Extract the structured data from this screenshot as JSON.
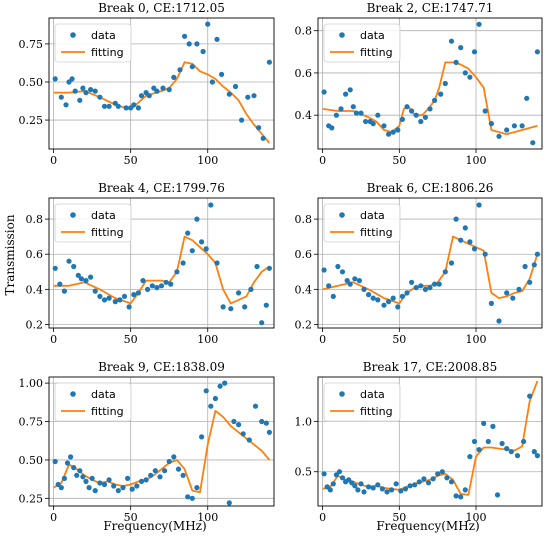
{
  "figure": {
    "ylabel": "Transmission",
    "xlabel": "Frequency(MHz)",
    "legend": {
      "data_label": "data",
      "fit_label": "fitting"
    },
    "colors": {
      "data": "#1f77b4",
      "fitting": "#ff7f0e",
      "grid": "#b0b0b0"
    }
  },
  "chart_data": [
    {
      "type": "scatter",
      "title": "Break 0, CE:1712.05",
      "xlim": [
        -3,
        143
      ],
      "ylim": [
        0.06,
        0.92
      ],
      "xticks": [
        0,
        50,
        100
      ],
      "yticks": [
        0.25,
        0.5,
        0.75
      ],
      "ytick_labels": [
        "0.25",
        "0.50",
        "0.75"
      ],
      "xlabel": "",
      "legend": "top-left",
      "series": [
        {
          "name": "data",
          "kind": "points",
          "x": [
            1,
            5,
            8,
            10,
            12,
            14,
            17,
            19,
            21,
            24,
            27,
            30,
            33,
            36,
            40,
            42,
            47,
            50,
            52,
            55,
            57,
            60,
            62,
            65,
            67,
            71,
            75,
            78,
            82,
            85,
            88,
            90,
            93,
            97,
            100,
            103,
            106,
            109,
            114,
            118,
            122,
            126,
            130,
            133,
            136,
            140
          ],
          "y": [
            0.52,
            0.4,
            0.35,
            0.5,
            0.52,
            0.44,
            0.38,
            0.46,
            0.43,
            0.45,
            0.44,
            0.4,
            0.34,
            0.34,
            0.36,
            0.34,
            0.33,
            0.33,
            0.35,
            0.33,
            0.41,
            0.43,
            0.41,
            0.46,
            0.44,
            0.46,
            0.45,
            0.53,
            0.58,
            0.8,
            0.75,
            0.6,
            0.75,
            0.7,
            0.88,
            0.5,
            0.78,
            0.55,
            0.42,
            0.47,
            0.25,
            0.4,
            0.41,
            0.2,
            0.13,
            0.63
          ]
        },
        {
          "name": "fitting",
          "kind": "line",
          "x": [
            0,
            10,
            20,
            30,
            40,
            50,
            60,
            70,
            75,
            80,
            85,
            90,
            95,
            100,
            105,
            110,
            115,
            120,
            125,
            130,
            135,
            140
          ],
          "y": [
            0.43,
            0.43,
            0.44,
            0.4,
            0.35,
            0.32,
            0.41,
            0.44,
            0.46,
            0.52,
            0.63,
            0.62,
            0.57,
            0.55,
            0.52,
            0.47,
            0.43,
            0.38,
            0.29,
            0.22,
            0.16,
            0.1
          ]
        }
      ]
    },
    {
      "type": "scatter",
      "title": "Break 2, CE:1747.71",
      "xlim": [
        -3,
        143
      ],
      "ylim": [
        0.24,
        0.86
      ],
      "xticks": [
        0,
        50,
        100
      ],
      "yticks": [
        0.4,
        0.6,
        0.8
      ],
      "ytick_labels": [
        "0.4",
        "0.6",
        "0.8"
      ],
      "xlabel": "",
      "legend": "top-left",
      "series": [
        {
          "name": "data",
          "kind": "points",
          "x": [
            1,
            4,
            6,
            9,
            12,
            15,
            18,
            20,
            22,
            25,
            28,
            31,
            33,
            36,
            40,
            43,
            46,
            49,
            52,
            55,
            58,
            61,
            64,
            67,
            70,
            73,
            77,
            80,
            84,
            87,
            90,
            93,
            96,
            99,
            102,
            106,
            110,
            115,
            120,
            125,
            130,
            133,
            137,
            140
          ],
          "y": [
            0.51,
            0.35,
            0.34,
            0.4,
            0.43,
            0.5,
            0.52,
            0.44,
            0.41,
            0.41,
            0.37,
            0.37,
            0.36,
            0.4,
            0.35,
            0.31,
            0.32,
            0.33,
            0.38,
            0.44,
            0.42,
            0.4,
            0.37,
            0.39,
            0.43,
            0.47,
            0.5,
            0.55,
            0.75,
            0.65,
            0.72,
            0.6,
            0.58,
            0.7,
            0.83,
            0.42,
            0.36,
            0.3,
            0.33,
            0.35,
            0.35,
            0.48,
            0.27,
            0.7
          ]
        },
        {
          "name": "fitting",
          "kind": "line",
          "x": [
            0,
            10,
            20,
            30,
            35,
            40,
            45,
            50,
            53,
            56,
            60,
            65,
            70,
            73,
            76,
            80,
            85,
            90,
            95,
            100,
            105,
            110,
            115,
            120,
            125,
            130,
            135,
            140
          ],
          "y": [
            0.43,
            0.42,
            0.42,
            0.39,
            0.37,
            0.33,
            0.32,
            0.35,
            0.43,
            0.44,
            0.4,
            0.4,
            0.44,
            0.47,
            0.53,
            0.65,
            0.65,
            0.64,
            0.62,
            0.58,
            0.53,
            0.33,
            0.32,
            0.31,
            0.32,
            0.33,
            0.34,
            0.35
          ]
        }
      ]
    },
    {
      "type": "scatter",
      "title": "Break 4, CE:1799.76",
      "xlim": [
        -3,
        143
      ],
      "ylim": [
        0.18,
        0.92
      ],
      "xticks": [
        0,
        50,
        100
      ],
      "yticks": [
        0.2,
        0.4,
        0.6,
        0.8
      ],
      "ytick_labels": [
        "0.2",
        "0.4",
        "0.6",
        "0.8"
      ],
      "xlabel": "",
      "legend": "top-left",
      "series": [
        {
          "name": "data",
          "kind": "points",
          "x": [
            1,
            4,
            7,
            10,
            13,
            16,
            18,
            21,
            24,
            27,
            30,
            33,
            36,
            40,
            43,
            46,
            49,
            52,
            55,
            58,
            61,
            64,
            67,
            70,
            73,
            76,
            80,
            84,
            87,
            90,
            93,
            96,
            99,
            102,
            106,
            110,
            115,
            120,
            124,
            128,
            132,
            135,
            138,
            140
          ],
          "y": [
            0.52,
            0.43,
            0.39,
            0.56,
            0.53,
            0.48,
            0.46,
            0.45,
            0.47,
            0.39,
            0.36,
            0.34,
            0.35,
            0.33,
            0.34,
            0.36,
            0.3,
            0.37,
            0.38,
            0.45,
            0.4,
            0.42,
            0.41,
            0.42,
            0.44,
            0.43,
            0.5,
            0.55,
            0.72,
            0.62,
            0.8,
            0.67,
            0.63,
            0.88,
            0.55,
            0.3,
            0.29,
            0.38,
            0.3,
            0.4,
            0.53,
            0.21,
            0.31,
            0.52
          ]
        },
        {
          "name": "fitting",
          "kind": "line",
          "x": [
            0,
            10,
            20,
            30,
            40,
            50,
            55,
            60,
            70,
            75,
            80,
            85,
            90,
            95,
            100,
            105,
            110,
            115,
            120,
            125,
            130,
            135,
            140
          ],
          "y": [
            0.42,
            0.42,
            0.44,
            0.4,
            0.35,
            0.32,
            0.38,
            0.45,
            0.45,
            0.44,
            0.5,
            0.7,
            0.68,
            0.64,
            0.6,
            0.55,
            0.4,
            0.32,
            0.34,
            0.36,
            0.44,
            0.5,
            0.53
          ]
        }
      ]
    },
    {
      "type": "scatter",
      "title": "Break 6, CE:1806.26",
      "xlim": [
        -3,
        143
      ],
      "ylim": [
        0.18,
        0.92
      ],
      "xticks": [
        0,
        50,
        100
      ],
      "yticks": [
        0.2,
        0.4,
        0.6,
        0.8
      ],
      "ytick_labels": [
        "0.2",
        "0.4",
        "0.6",
        "0.8"
      ],
      "xlabel": "",
      "legend": "top-left",
      "series": [
        {
          "name": "data",
          "kind": "points",
          "x": [
            1,
            4,
            7,
            10,
            13,
            16,
            18,
            21,
            24,
            27,
            30,
            33,
            36,
            40,
            43,
            46,
            49,
            52,
            55,
            58,
            61,
            64,
            67,
            70,
            73,
            76,
            80,
            84,
            87,
            90,
            93,
            96,
            99,
            102,
            106,
            110,
            115,
            120,
            124,
            128,
            132,
            135,
            138,
            140
          ],
          "y": [
            0.51,
            0.42,
            0.36,
            0.53,
            0.5,
            0.45,
            0.43,
            0.46,
            0.45,
            0.4,
            0.37,
            0.35,
            0.34,
            0.31,
            0.33,
            0.35,
            0.3,
            0.36,
            0.38,
            0.44,
            0.41,
            0.42,
            0.4,
            0.41,
            0.43,
            0.43,
            0.5,
            0.55,
            0.8,
            0.68,
            0.75,
            0.67,
            0.63,
            0.88,
            0.6,
            0.32,
            0.22,
            0.38,
            0.35,
            0.4,
            0.53,
            0.44,
            0.54,
            0.6
          ]
        },
        {
          "name": "fitting",
          "kind": "line",
          "x": [
            0,
            10,
            20,
            30,
            40,
            50,
            55,
            60,
            65,
            70,
            75,
            80,
            85,
            90,
            95,
            100,
            105,
            110,
            115,
            120,
            125,
            130,
            135,
            140
          ],
          "y": [
            0.4,
            0.42,
            0.44,
            0.4,
            0.35,
            0.32,
            0.38,
            0.41,
            0.42,
            0.42,
            0.44,
            0.5,
            0.7,
            0.68,
            0.66,
            0.64,
            0.62,
            0.38,
            0.35,
            0.36,
            0.38,
            0.39,
            0.46,
            0.6
          ]
        }
      ]
    },
    {
      "type": "scatter",
      "title": "Break 9, CE:1838.09",
      "xlim": [
        -3,
        143
      ],
      "ylim": [
        0.2,
        1.04
      ],
      "xticks": [
        0,
        50,
        100
      ],
      "yticks": [
        0.25,
        0.5,
        0.75,
        1.0
      ],
      "ytick_labels": [
        "0.25",
        "0.50",
        "0.75",
        "1.00"
      ],
      "xlabel": "Frequency(MHz)",
      "legend": "top-left",
      "series": [
        {
          "name": "data",
          "kind": "points",
          "x": [
            1,
            3,
            5,
            7,
            9,
            11,
            13,
            15,
            17,
            19,
            21,
            23,
            25,
            27,
            30,
            33,
            36,
            39,
            42,
            45,
            48,
            51,
            54,
            57,
            60,
            63,
            66,
            69,
            72,
            75,
            78,
            81,
            84,
            87,
            90,
            93,
            96,
            99,
            102,
            105,
            108,
            111,
            114,
            117,
            120,
            123,
            127,
            131,
            135,
            138,
            140
          ],
          "y": [
            0.49,
            0.34,
            0.32,
            0.38,
            0.48,
            0.52,
            0.45,
            0.4,
            0.43,
            0.39,
            0.36,
            0.32,
            0.38,
            0.3,
            0.35,
            0.34,
            0.37,
            0.33,
            0.3,
            0.32,
            0.38,
            0.31,
            0.33,
            0.36,
            0.37,
            0.4,
            0.43,
            0.39,
            0.43,
            0.49,
            0.52,
            0.44,
            0.4,
            0.26,
            0.25,
            0.32,
            0.65,
            0.95,
            0.85,
            0.9,
            0.98,
            1.0,
            0.22,
            0.75,
            0.73,
            0.67,
            0.63,
            0.85,
            0.75,
            0.74,
            0.68
          ]
        },
        {
          "name": "fitting",
          "kind": "line",
          "x": [
            0,
            5,
            10,
            15,
            20,
            25,
            30,
            35,
            40,
            45,
            50,
            55,
            60,
            65,
            70,
            75,
            80,
            85,
            90,
            95,
            100,
            105,
            110,
            115,
            120,
            125,
            130,
            135,
            140
          ],
          "y": [
            0.32,
            0.35,
            0.47,
            0.44,
            0.4,
            0.37,
            0.35,
            0.36,
            0.34,
            0.33,
            0.34,
            0.36,
            0.37,
            0.4,
            0.44,
            0.48,
            0.5,
            0.44,
            0.3,
            0.29,
            0.6,
            0.82,
            0.78,
            0.72,
            0.68,
            0.64,
            0.6,
            0.56,
            0.5
          ]
        }
      ]
    },
    {
      "type": "scatter",
      "title": "Break 17, CE:2008.85",
      "xlim": [
        -3,
        143
      ],
      "ylim": [
        0.16,
        1.44
      ],
      "xticks": [
        0,
        50,
        100
      ],
      "yticks": [
        0.5,
        1.0
      ],
      "ytick_labels": [
        "0.5",
        "1.0"
      ],
      "xlabel": "Frequency(MHz)",
      "legend": "top-left",
      "series": [
        {
          "name": "data",
          "kind": "points",
          "x": [
            1,
            3,
            5,
            7,
            9,
            11,
            13,
            15,
            17,
            19,
            21,
            23,
            25,
            27,
            30,
            33,
            36,
            39,
            42,
            45,
            48,
            51,
            54,
            57,
            60,
            63,
            66,
            69,
            72,
            75,
            78,
            81,
            84,
            87,
            90,
            93,
            96,
            99,
            102,
            105,
            108,
            111,
            114,
            117,
            120,
            123,
            127,
            131,
            135,
            138,
            140
          ],
          "y": [
            0.48,
            0.35,
            0.32,
            0.38,
            0.47,
            0.5,
            0.44,
            0.4,
            0.42,
            0.39,
            0.36,
            0.32,
            0.38,
            0.3,
            0.35,
            0.34,
            0.37,
            0.33,
            0.3,
            0.32,
            0.38,
            0.31,
            0.33,
            0.36,
            0.37,
            0.4,
            0.43,
            0.39,
            0.43,
            0.48,
            0.5,
            0.44,
            0.4,
            0.26,
            0.25,
            0.32,
            0.65,
            0.8,
            0.72,
            0.98,
            0.8,
            0.95,
            0.27,
            0.78,
            0.73,
            0.7,
            0.66,
            0.8,
            1.25,
            0.7,
            0.66
          ]
        },
        {
          "name": "fitting",
          "kind": "line",
          "x": [
            0,
            5,
            10,
            15,
            20,
            25,
            30,
            35,
            40,
            45,
            50,
            55,
            60,
            65,
            70,
            75,
            80,
            85,
            90,
            95,
            100,
            105,
            110,
            115,
            120,
            125,
            130,
            135,
            140
          ],
          "y": [
            0.33,
            0.35,
            0.46,
            0.42,
            0.4,
            0.37,
            0.35,
            0.36,
            0.34,
            0.33,
            0.32,
            0.35,
            0.38,
            0.4,
            0.42,
            0.46,
            0.48,
            0.42,
            0.28,
            0.27,
            0.65,
            0.74,
            0.74,
            0.73,
            0.72,
            0.71,
            0.75,
            1.2,
            1.4
          ]
        }
      ]
    }
  ]
}
